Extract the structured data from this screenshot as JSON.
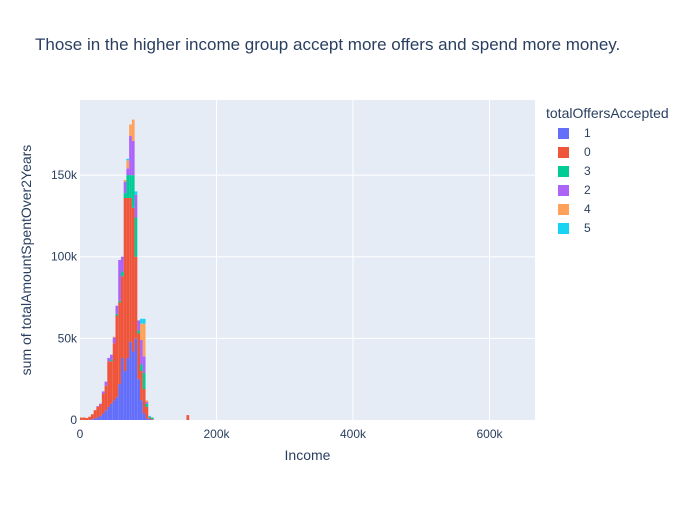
{
  "chart_data": {
    "type": "bar",
    "barmode": "stack",
    "title": "Those in the higher income group accept more offers and spend more money.",
    "xlabel": "Income",
    "ylabel": "sum of totalAmountSpentOver2Years",
    "xlim": [
      0,
      666666
    ],
    "ylim": [
      0,
      196000
    ],
    "x_ticks": [
      {
        "value": 0,
        "label": "0"
      },
      {
        "value": 200000,
        "label": "200k"
      },
      {
        "value": 400000,
        "label": "400k"
      },
      {
        "value": 600000,
        "label": "600k"
      }
    ],
    "y_ticks": [
      {
        "value": 0,
        "label": "0"
      },
      {
        "value": 50000,
        "label": "50k"
      },
      {
        "value": 100000,
        "label": "100k"
      },
      {
        "value": 150000,
        "label": "150k"
      }
    ],
    "grid": true,
    "legend": {
      "title": "totalOffersAccepted",
      "position": "right"
    },
    "bin_width": 4000,
    "bins": [
      0,
      4000,
      8000,
      12000,
      16000,
      20000,
      24000,
      28000,
      32000,
      36000,
      40000,
      44000,
      48000,
      52000,
      56000,
      60000,
      64000,
      68000,
      72000,
      76000,
      80000,
      84000,
      88000,
      92000,
      96000,
      100000,
      104000,
      156000
    ],
    "series": [
      {
        "name": "1",
        "color": "#636efa",
        "values": [
          0,
          0,
          0,
          0,
          500,
          1000,
          1500,
          2500,
          4000,
          6000,
          8000,
          10000,
          12000,
          14000,
          22000,
          38000,
          30000,
          38000,
          48000,
          42000,
          50000,
          25000,
          12000,
          4000,
          1000,
          500,
          0,
          0
        ]
      },
      {
        "name": "0",
        "color": "#ef553b",
        "values": [
          1500,
          1500,
          1200,
          2000,
          3000,
          5000,
          6500,
          7000,
          12000,
          15000,
          28000,
          26000,
          35000,
          50000,
          50000,
          50000,
          106000,
          98000,
          88000,
          88000,
          50000,
          28000,
          18000,
          15000,
          7000,
          1000,
          500,
          3000
        ]
      },
      {
        "name": "3",
        "color": "#00cc96",
        "values": [
          0,
          0,
          0,
          0,
          0,
          0,
          0,
          0,
          0,
          0,
          0,
          1000,
          0,
          1000,
          1000,
          3000,
          3000,
          14000,
          14000,
          20000,
          24000,
          2000,
          4000,
          10000,
          2000,
          0,
          1000,
          0
        ]
      },
      {
        "name": "2",
        "color": "#ab63fa",
        "values": [
          0,
          0,
          0,
          0,
          0,
          0,
          500,
          500,
          1500,
          2500,
          2000,
          3000,
          3500,
          5000,
          25000,
          9000,
          7000,
          4000,
          24000,
          21000,
          14000,
          6000,
          15000,
          10000,
          1000,
          0,
          0,
          0
        ]
      },
      {
        "name": "4",
        "color": "#ffa15a",
        "values": [
          0,
          0,
          0,
          0,
          0,
          0,
          0,
          0,
          0,
          0,
          0,
          0,
          500,
          0,
          0,
          0,
          1000,
          5000,
          7000,
          13000,
          0,
          0,
          10000,
          20000,
          1000,
          0,
          0,
          0
        ]
      },
      {
        "name": "5",
        "color": "#19d3f3",
        "values": [
          0,
          0,
          0,
          0,
          0,
          0,
          0,
          0,
          0,
          0,
          0,
          0,
          0,
          0,
          0,
          0,
          0,
          1000,
          0,
          0,
          2000,
          0,
          3000,
          3000,
          0,
          1000,
          0,
          0
        ]
      }
    ]
  }
}
